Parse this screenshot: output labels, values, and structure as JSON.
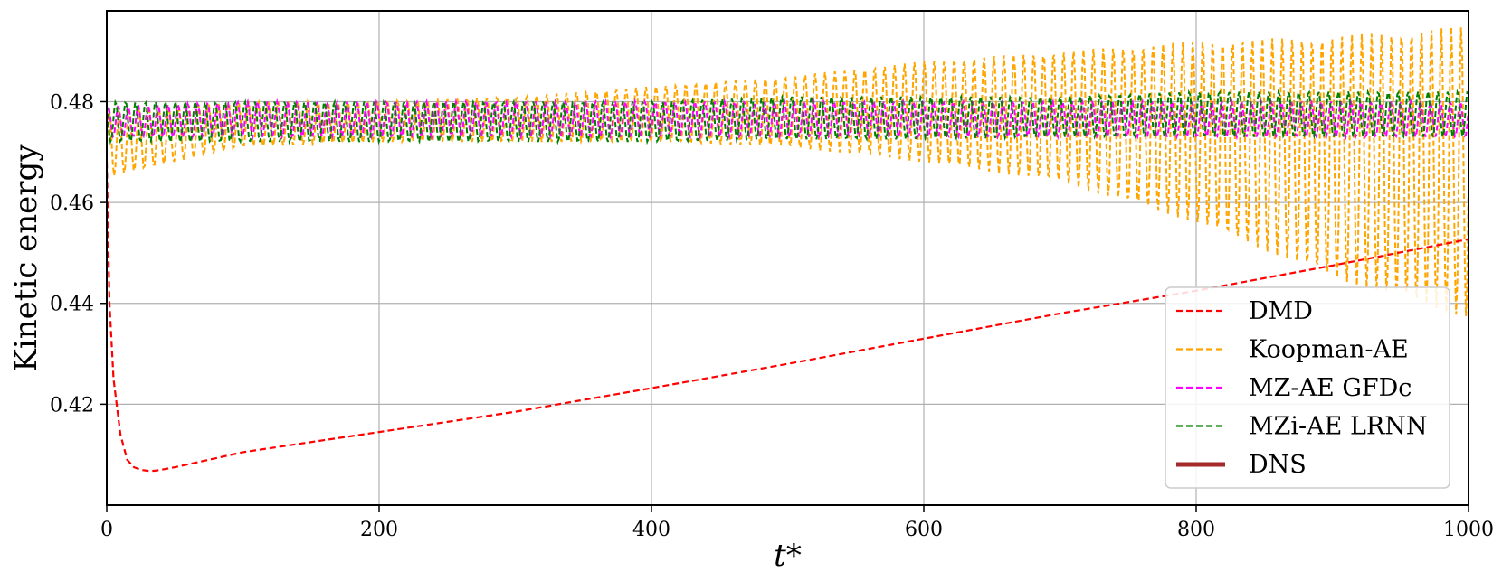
{
  "chart_data": {
    "type": "line",
    "xlabel": "t*",
    "ylabel": "Kinetic energy",
    "xlim": [
      0,
      1000
    ],
    "ylim": [
      0.4,
      0.498
    ],
    "x_ticks": [
      0,
      200,
      400,
      600,
      800,
      1000
    ],
    "y_ticks": [
      0.42,
      0.44,
      0.46,
      0.48
    ],
    "x_tick_labels": [
      "0",
      "200",
      "400",
      "600",
      "800",
      "1000"
    ],
    "y_tick_labels": [
      "0.42",
      "0.44",
      "0.46",
      "0.48"
    ],
    "grid": true,
    "legend_position": "lower-right",
    "series": [
      {
        "name": "DMD",
        "color": "#ff0000",
        "style": "dashed",
        "x": [
          0,
          2,
          5,
          10,
          15,
          20,
          25,
          30,
          35,
          40,
          50,
          100,
          200,
          300,
          400,
          500,
          600,
          700,
          800,
          900,
          1000
        ],
        "y": [
          0.468,
          0.44,
          0.425,
          0.414,
          0.409,
          0.4075,
          0.407,
          0.4068,
          0.4068,
          0.407,
          0.4075,
          0.4105,
          0.4145,
          0.4185,
          0.4232,
          0.428,
          0.433,
          0.438,
          0.4425,
          0.4475,
          0.4527
        ]
      },
      {
        "name": "Koopman-AE",
        "color": "#ffa500",
        "style": "dashed",
        "oscillating": true,
        "x": [
          0,
          50,
          100,
          200,
          300,
          400,
          500,
          600,
          700,
          800,
          900,
          1000
        ],
        "upper": [
          0.478,
          0.479,
          0.48,
          0.48,
          0.481,
          0.483,
          0.485,
          0.488,
          0.49,
          0.492,
          0.493,
          0.495
        ],
        "lower": [
          0.465,
          0.468,
          0.471,
          0.472,
          0.472,
          0.472,
          0.471,
          0.468,
          0.464,
          0.456,
          0.445,
          0.437
        ]
      },
      {
        "name": "MZ-AE GFDc",
        "color": "#ff00ff",
        "style": "dashed",
        "oscillating": true,
        "x": [
          0,
          100,
          200,
          300,
          400,
          500,
          600,
          700,
          800,
          900,
          1000
        ],
        "upper": [
          0.479,
          0.48,
          0.48,
          0.48,
          0.48,
          0.48,
          0.48,
          0.48,
          0.48,
          0.48,
          0.48
        ],
        "lower": [
          0.473,
          0.473,
          0.473,
          0.473,
          0.473,
          0.473,
          0.473,
          0.473,
          0.473,
          0.473,
          0.473
        ]
      },
      {
        "name": "MZi-AE LRNN",
        "color": "#008000",
        "style": "dashed",
        "oscillating": true,
        "x": [
          0,
          100,
          200,
          300,
          400,
          500,
          600,
          700,
          800,
          900,
          1000
        ],
        "upper": [
          0.48,
          0.48,
          0.48,
          0.48,
          0.48,
          0.481,
          0.481,
          0.481,
          0.482,
          0.482,
          0.482
        ],
        "lower": [
          0.472,
          0.472,
          0.472,
          0.472,
          0.472,
          0.4725,
          0.4725,
          0.473,
          0.473,
          0.473,
          0.473
        ]
      },
      {
        "name": "DNS",
        "color": "#a52a2a",
        "style": "solid",
        "x": [],
        "y": []
      }
    ]
  }
}
